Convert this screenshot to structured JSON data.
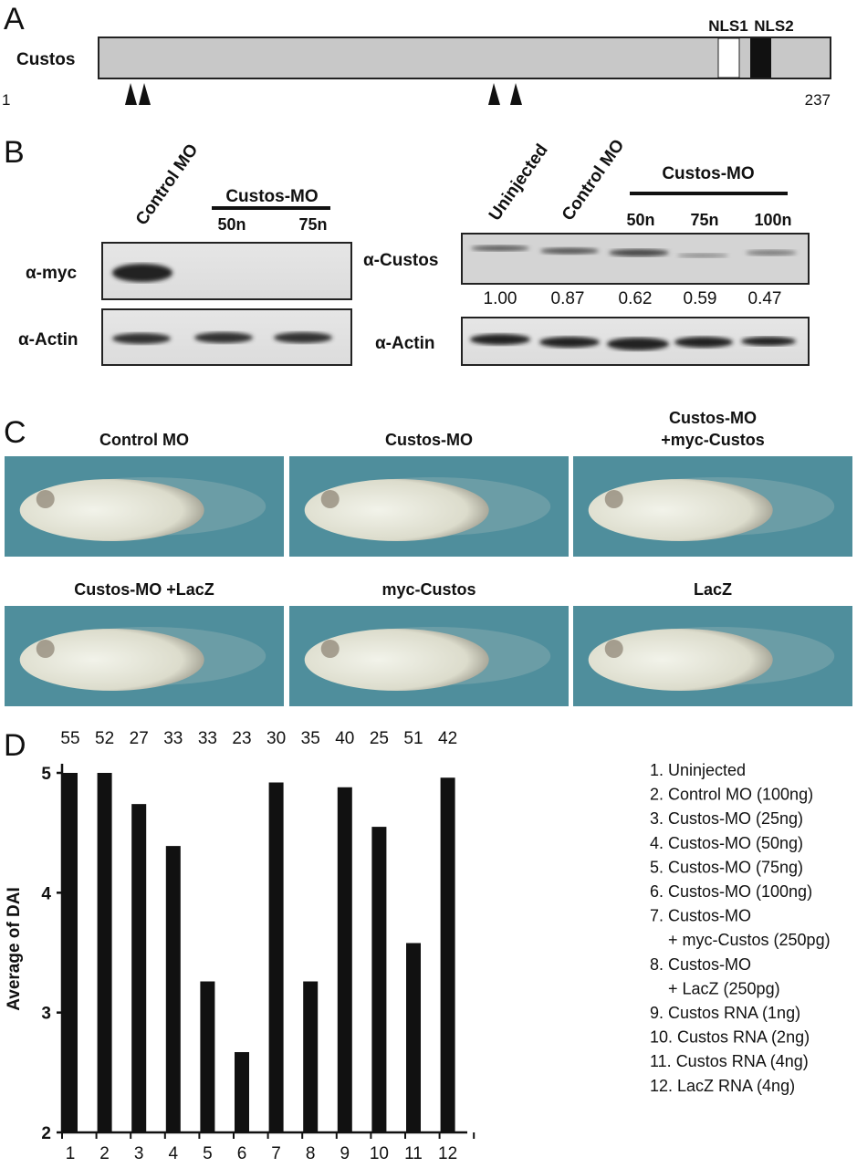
{
  "panel_a": {
    "letter": "A",
    "protein_label": "Custos",
    "nls1": "NLS1",
    "nls2": "NLS2",
    "start": "1",
    "end": "237",
    "colors": {
      "bar": "#c8c8c8",
      "nls1": "#ffffff",
      "nls2": "#111111"
    }
  },
  "panel_b": {
    "letter": "B",
    "left": {
      "header_control": "Control MO",
      "header_group": "Custos-MO",
      "doses": [
        "50n",
        "75n"
      ],
      "row_labels": [
        "α-myc",
        "α-Actin"
      ]
    },
    "right": {
      "header_uninjected": "Uninjected",
      "header_control": "Control MO",
      "header_group": "Custos-MO",
      "doses": [
        "50n",
        "75n",
        "100n"
      ],
      "row_labels": [
        "α-Custos",
        "α-Actin"
      ],
      "quantification": [
        "1.00",
        "0.87",
        "0.62",
        "0.59",
        "0.47"
      ]
    }
  },
  "panel_c": {
    "letter": "C",
    "images": [
      {
        "title": "Control MO",
        "title2": ""
      },
      {
        "title": "Custos-MO",
        "title2": ""
      },
      {
        "title": "Custos-MO",
        "title2": "+myc-Custos"
      },
      {
        "title": "Custos-MO +LacZ",
        "title2": ""
      },
      {
        "title": "myc-Custos",
        "title2": ""
      },
      {
        "title": "LacZ",
        "title2": ""
      }
    ],
    "background_color": "#4f8e9c"
  },
  "chart_data": {
    "type": "bar",
    "panel_letter": "D",
    "categories": [
      "1",
      "2",
      "3",
      "4",
      "5",
      "6",
      "7",
      "8",
      "9",
      "10",
      "11",
      "12"
    ],
    "values": [
      5.0,
      5.0,
      4.74,
      4.39,
      3.26,
      2.67,
      4.92,
      3.26,
      4.88,
      4.55,
      3.58,
      4.96
    ],
    "n_labels": [
      "55",
      "52",
      "27",
      "33",
      "33",
      "23",
      "30",
      "35",
      "40",
      "25",
      "51",
      "42"
    ],
    "ylabel": "Average of DAI",
    "xlabel": "",
    "ylim": [
      2,
      5
    ],
    "yticks": [
      "5",
      "4",
      "3",
      "2"
    ],
    "grid": false,
    "bar_color": "#111111",
    "legend_position": "right",
    "legend": [
      "1. Uninjected",
      "2. Control MO (100ng)",
      "3. Custos-MO (25ng)",
      "4. Custos-MO (50ng)",
      "5. Custos-MO (75ng)",
      "6. Custos-MO (100ng)",
      "7. Custos-MO",
      "    + myc-Custos (250pg)",
      "8. Custos-MO",
      "    + LacZ (250pg)",
      "9. Custos RNA (1ng)",
      "10. Custos RNA (2ng)",
      "11. Custos RNA (4ng)",
      "12. LacZ RNA (4ng)"
    ]
  }
}
